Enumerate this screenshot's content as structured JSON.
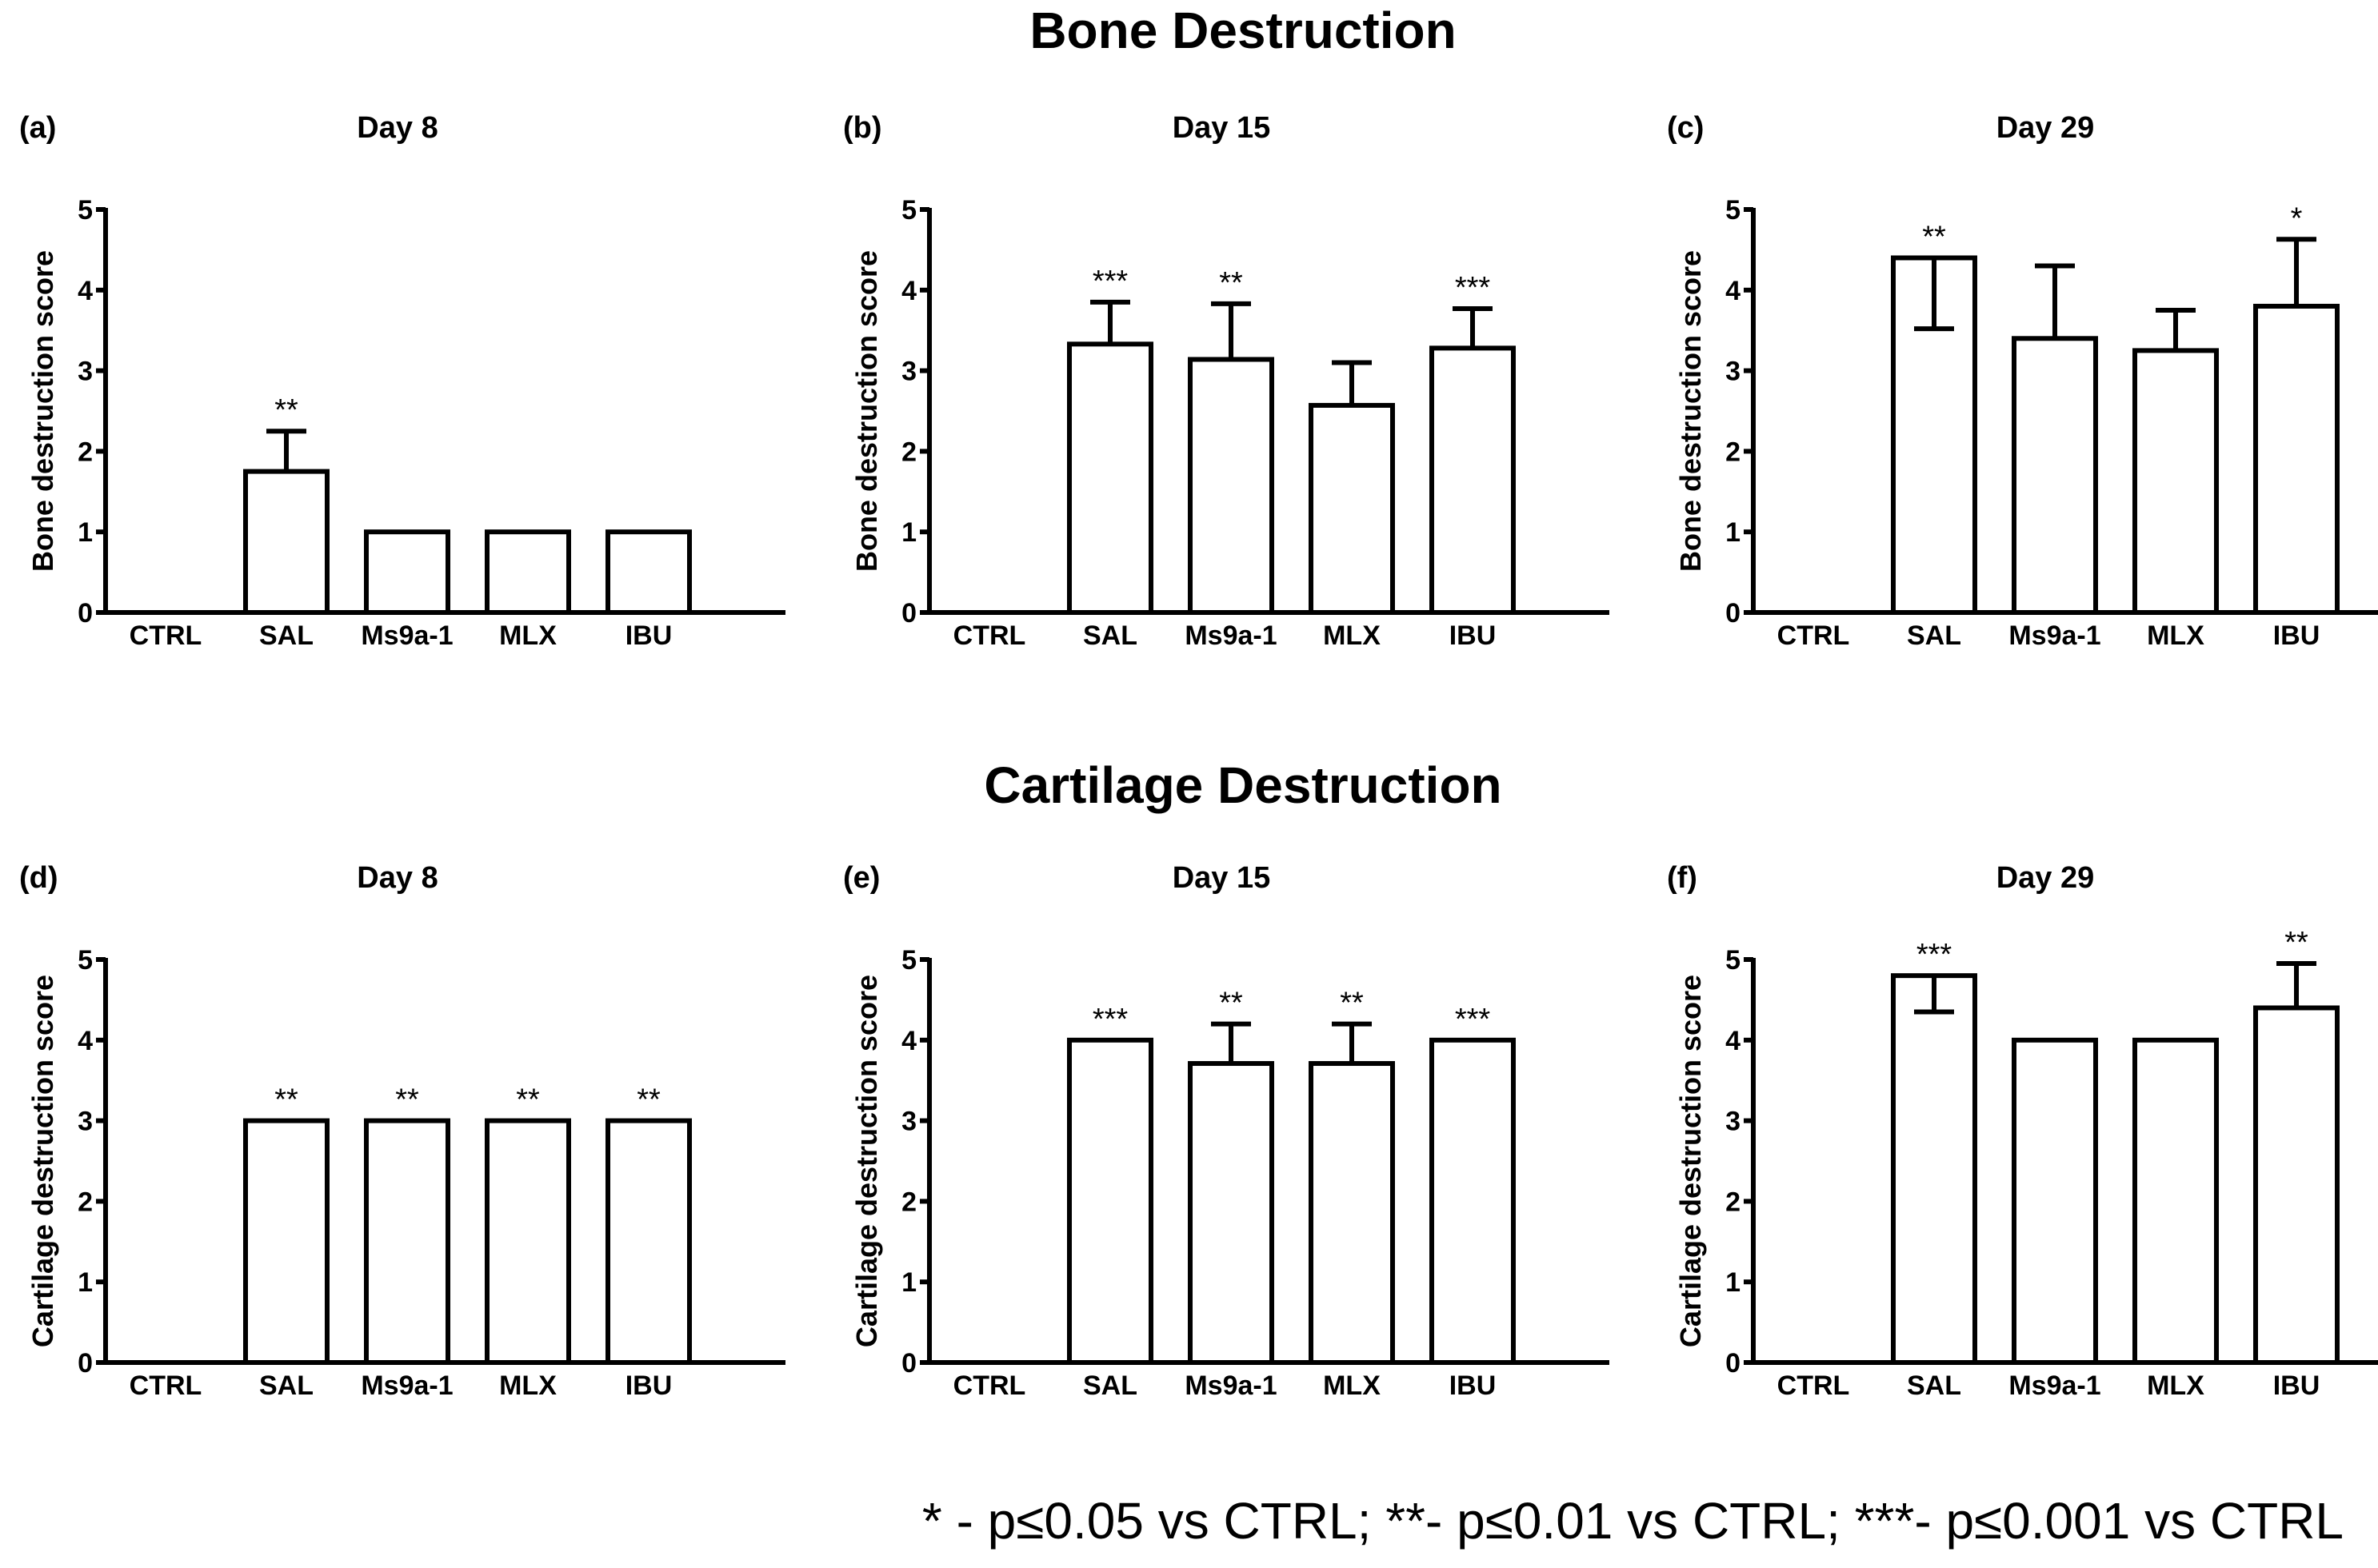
{
  "sections": [
    {
      "title": "Bone Destruction"
    },
    {
      "title": "Cartilage Destruction"
    }
  ],
  "footnote": "* - p≤0.05 vs CTRL; **- p≤0.01 vs CTRL; ***- p≤0.001 vs CTRL",
  "chart_data": [
    {
      "type": "bar",
      "label": "(a)",
      "title": "Day 8",
      "section": "Bone Destruction",
      "ylabel": "Bone destruction score",
      "xlabel": "",
      "ylim": [
        0,
        5
      ],
      "yticks": [
        0,
        1,
        2,
        3,
        4,
        5
      ],
      "categories": [
        "CTRL",
        "SAL",
        "Ms9a-1",
        "MLX",
        "IBU"
      ],
      "values": [
        0,
        1.75,
        1,
        1,
        1
      ],
      "error_upper": [
        0,
        2.25,
        1,
        1,
        1
      ],
      "error_lower": [
        0,
        1.75,
        1,
        1,
        1
      ],
      "significance": [
        "",
        "**",
        "",
        "",
        ""
      ]
    },
    {
      "type": "bar",
      "label": "(b)",
      "title": "Day 15",
      "section": "Bone Destruction",
      "ylabel": "Bone destruction score",
      "xlabel": "",
      "ylim": [
        0,
        5
      ],
      "yticks": [
        0,
        1,
        2,
        3,
        4,
        5
      ],
      "categories": [
        "CTRL",
        "SAL",
        "Ms9a-1",
        "MLX",
        "IBU"
      ],
      "values": [
        0,
        3.33,
        3.14,
        2.57,
        3.28
      ],
      "error_upper": [
        0,
        3.85,
        3.83,
        3.1,
        3.77
      ],
      "error_lower": [
        0,
        3.33,
        3.14,
        2.57,
        3.28
      ],
      "significance": [
        "",
        "***",
        "**",
        "",
        "***"
      ]
    },
    {
      "type": "bar",
      "label": "(c)",
      "title": "Day 29",
      "section": "Bone Destruction",
      "ylabel": "Bone destruction score",
      "xlabel": "",
      "ylim": [
        0,
        5
      ],
      "yticks": [
        0,
        1,
        2,
        3,
        4,
        5
      ],
      "categories": [
        "CTRL",
        "SAL",
        "Ms9a-1",
        "MLX",
        "IBU"
      ],
      "values": [
        0,
        4.4,
        3.4,
        3.25,
        3.8
      ],
      "error_upper": [
        0,
        4.4,
        4.3,
        3.75,
        4.63
      ],
      "error_lower": [
        0,
        3.52,
        3.4,
        3.25,
        3.8
      ],
      "significance": [
        "",
        "**",
        "",
        "",
        "*"
      ]
    },
    {
      "type": "bar",
      "label": "(d)",
      "title": "Day 8",
      "section": "Cartilage Destruction",
      "ylabel": "Cartilage destruction score",
      "xlabel": "",
      "ylim": [
        0,
        5
      ],
      "yticks": [
        0,
        1,
        2,
        3,
        4,
        5
      ],
      "categories": [
        "CTRL",
        "SAL",
        "Ms9a-1",
        "MLX",
        "IBU"
      ],
      "values": [
        0,
        3,
        3,
        3,
        3
      ],
      "error_upper": [
        0,
        3,
        3,
        3,
        3
      ],
      "error_lower": [
        0,
        3,
        3,
        3,
        3
      ],
      "significance": [
        "",
        "**",
        "**",
        "**",
        "**"
      ]
    },
    {
      "type": "bar",
      "label": "(e)",
      "title": "Day 15",
      "section": "Cartilage Destruction",
      "ylabel": "Cartilage destruction score",
      "xlabel": "",
      "ylim": [
        0,
        5
      ],
      "yticks": [
        0,
        1,
        2,
        3,
        4,
        5
      ],
      "categories": [
        "CTRL",
        "SAL",
        "Ms9a-1",
        "MLX",
        "IBU"
      ],
      "values": [
        0,
        4,
        3.71,
        3.71,
        4
      ],
      "error_upper": [
        0,
        4,
        4.2,
        4.2,
        4
      ],
      "error_lower": [
        0,
        4,
        3.71,
        3.71,
        4
      ],
      "significance": [
        "",
        "***",
        "**",
        "**",
        "***"
      ]
    },
    {
      "type": "bar",
      "label": "(f)",
      "title": "Day 29",
      "section": "Cartilage Destruction",
      "ylabel": "Cartilage destruction score",
      "xlabel": "",
      "ylim": [
        0,
        5
      ],
      "yticks": [
        0,
        1,
        2,
        3,
        4,
        5
      ],
      "categories": [
        "CTRL",
        "SAL",
        "Ms9a-1",
        "MLX",
        "IBU"
      ],
      "values": [
        0,
        4.8,
        4,
        4,
        4.4
      ],
      "error_upper": [
        0,
        4.8,
        4,
        4,
        4.95
      ],
      "error_lower": [
        0,
        4.35,
        4,
        4,
        4.4
      ],
      "significance": [
        "",
        "***",
        "",
        "",
        "**"
      ]
    }
  ]
}
